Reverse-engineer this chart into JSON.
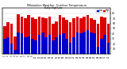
{
  "title": "Milwaukee Weather  Outdoor Temperature",
  "subtitle": "Daily High/Low",
  "high_color": "#dd0000",
  "low_color": "#0000cc",
  "background_color": "#ffffff",
  "grid_color": "#cccccc",
  "days": [
    1,
    2,
    3,
    4,
    5,
    6,
    7,
    8,
    9,
    10,
    11,
    12,
    13,
    14,
    15,
    16,
    17,
    18,
    19,
    20,
    21,
    22,
    23,
    24,
    25,
    26,
    27,
    28,
    29,
    30,
    31
  ],
  "highs": [
    55,
    62,
    60,
    35,
    78,
    74,
    70,
    76,
    72,
    68,
    74,
    72,
    70,
    74,
    60,
    64,
    76,
    72,
    67,
    62,
    70,
    74,
    70,
    74,
    76,
    70,
    67,
    60,
    74,
    72,
    60
  ],
  "lows": [
    30,
    32,
    20,
    8,
    42,
    40,
    32,
    34,
    30,
    27,
    37,
    42,
    32,
    37,
    27,
    32,
    37,
    40,
    30,
    22,
    32,
    42,
    40,
    44,
    47,
    42,
    40,
    14,
    30,
    38,
    22
  ],
  "ylim": [
    0,
    90
  ],
  "yticks": [
    10,
    20,
    30,
    40,
    50,
    60,
    70,
    80
  ],
  "bar_width": 0.85,
  "legend_labels": [
    "Low",
    "High"
  ]
}
